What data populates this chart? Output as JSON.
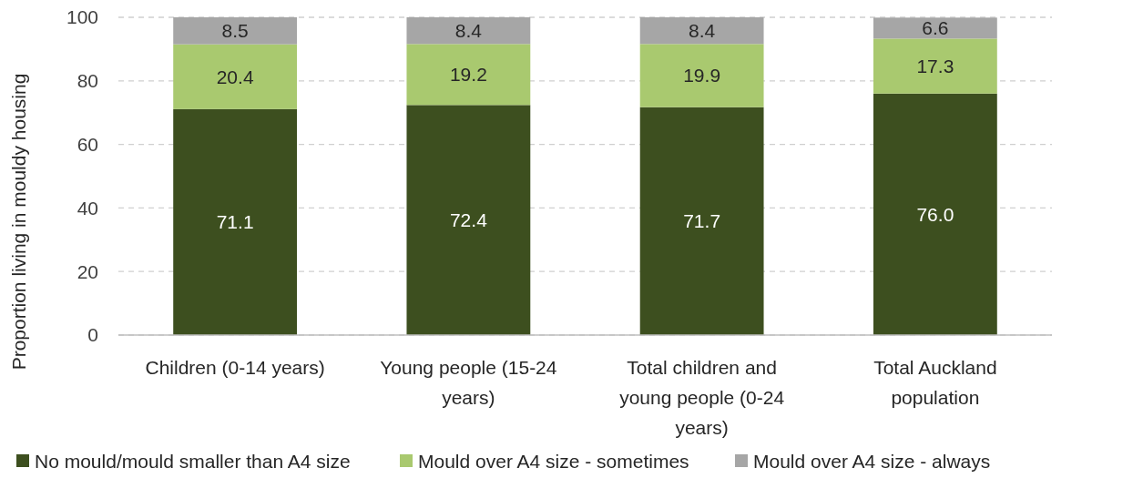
{
  "chart_data": {
    "type": "bar",
    "stacked": true,
    "ylabel": "Proportion living in mouldy housing",
    "categories": [
      "Children (0-14 years)",
      "Young people (15-24 years)",
      "Total children and young people (0-24 years)",
      "Total Auckland population"
    ],
    "series": [
      {
        "name": "No mould/mould smaller than A4 size",
        "color": "#3d4f1f",
        "values": [
          71.1,
          72.4,
          71.7,
          76.0
        ],
        "value_labels": [
          "71.1",
          "72.4",
          "71.7",
          "76.0"
        ]
      },
      {
        "name": "Mould over A4 size - sometimes",
        "color": "#a9c96f",
        "values": [
          20.4,
          19.2,
          19.9,
          17.3
        ],
        "value_labels": [
          "20.4",
          "19.2",
          "19.9",
          "17.3"
        ]
      },
      {
        "name": "Mould over A4 size - always",
        "color": "#a6a6a6",
        "values": [
          8.5,
          8.4,
          8.4,
          6.6
        ],
        "value_labels": [
          "8.5",
          "8.4",
          "8.4",
          "6.6"
        ]
      }
    ],
    "ylim": [
      0,
      100
    ],
    "yticks": [
      0,
      20,
      40,
      60,
      80,
      100
    ],
    "grid": "y",
    "legend": "bottom"
  }
}
